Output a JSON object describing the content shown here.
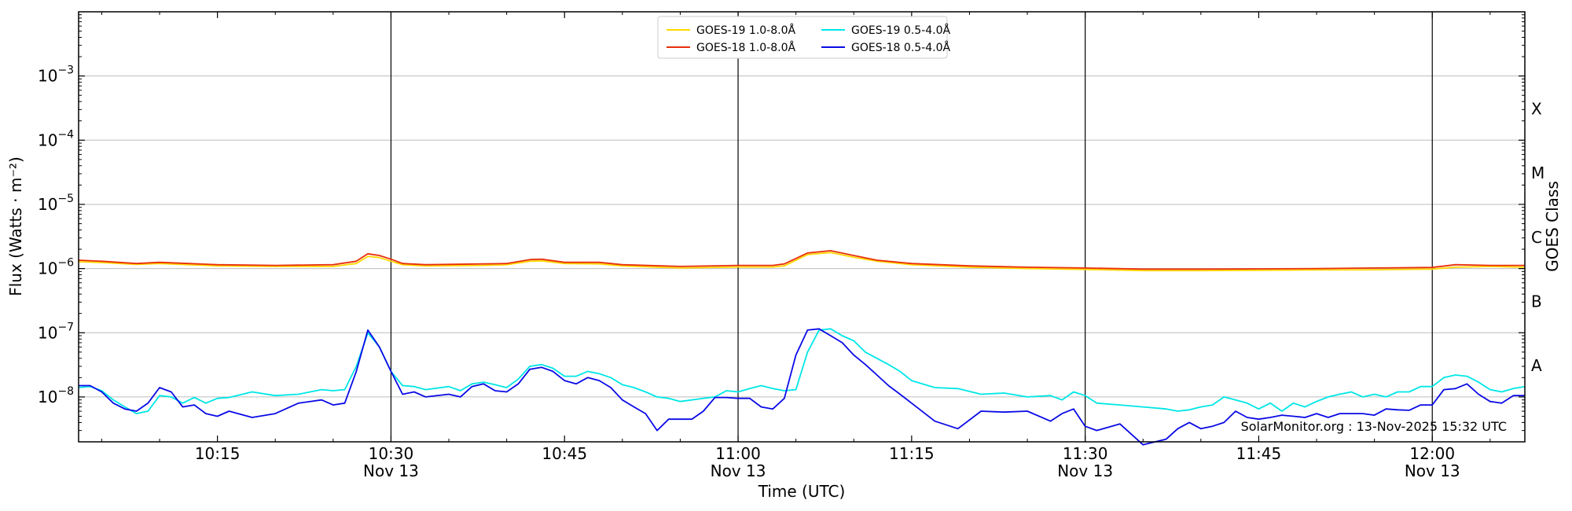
{
  "chart_data": {
    "type": "line",
    "ylabel": "Flux (Watts · m⁻²)",
    "xlabel": "Time (UTC)",
    "right_label": "GOES Class",
    "credit": "SolarMonitor.org : 13-Nov-2025 15:32 UTC",
    "yscale": "log",
    "ylim": [
      "2e-9",
      "0.01"
    ],
    "xlim": [
      "10:03",
      "12:08"
    ],
    "y_ticks": [
      {
        "base": "10",
        "exp": "−8",
        "value": "1e-8"
      },
      {
        "base": "10",
        "exp": "−7",
        "value": "1e-7"
      },
      {
        "base": "10",
        "exp": "−6",
        "value": "1e-6"
      },
      {
        "base": "10",
        "exp": "−5",
        "value": "1e-5"
      },
      {
        "base": "10",
        "exp": "−4",
        "value": "1e-4"
      },
      {
        "base": "10",
        "exp": "−3",
        "value": "1e-3"
      }
    ],
    "x_ticks": [
      {
        "time": "10:15",
        "date": ""
      },
      {
        "time": "10:30",
        "date": "Nov 13"
      },
      {
        "time": "10:45",
        "date": ""
      },
      {
        "time": "11:00",
        "date": "Nov 13"
      },
      {
        "time": "11:15",
        "date": ""
      },
      {
        "time": "11:30",
        "date": "Nov 13"
      },
      {
        "time": "11:45",
        "date": ""
      },
      {
        "time": "12:00",
        "date": "Nov 13"
      }
    ],
    "vertical_lines": [
      "10:30",
      "11:00",
      "11:30",
      "12:00"
    ],
    "classes": [
      {
        "label": "A",
        "value": "1e-8"
      },
      {
        "label": "B",
        "value": "1e-7"
      },
      {
        "label": "C",
        "value": "1e-6"
      },
      {
        "label": "M",
        "value": "1e-5"
      },
      {
        "label": "X",
        "value": "1e-4"
      }
    ],
    "grid": "horizontal at decades",
    "legend_position": "top-center",
    "series": [
      {
        "name": "GOES-19 1.0-8.0Å",
        "color": "#ffd700",
        "x": [
          "10:03",
          "10:05",
          "10:08",
          "10:10",
          "10:15",
          "10:20",
          "10:25",
          "10:27",
          "10:28",
          "10:29",
          "10:30",
          "10:31",
          "10:33",
          "10:38",
          "10:40",
          "10:42",
          "10:43",
          "10:45",
          "10:48",
          "10:50",
          "10:55",
          "11:00",
          "11:03",
          "11:04",
          "11:06",
          "11:08",
          "11:10",
          "11:12",
          "11:15",
          "11:20",
          "11:25",
          "11:30",
          "11:35",
          "11:40",
          "11:45",
          "11:50",
          "11:55",
          "12:00",
          "12:02",
          "12:05",
          "12:08"
        ],
        "values": [
          "1.28e-6",
          "1.24e-6",
          "1.16e-6",
          "1.2e-6",
          "1.1e-6",
          "1.08e-6",
          "1.08e-6",
          "1.2e-6",
          "1.55e-6",
          "1.48e-6",
          "1.3e-6",
          "1.15e-6",
          "1.1e-6",
          "1.12e-6",
          "1.15e-6",
          "1.3e-6",
          "1.32e-6",
          "1.2e-6",
          "1.18e-6",
          "1.1e-6",
          "1.02e-6",
          "1.06e-6",
          "1.06e-6",
          "1.1e-6",
          "1.65e-6",
          "1.78e-6",
          "1.5e-6",
          "1.3e-6",
          "1.15e-6",
          "1.05e-6",
          "1e-6",
          "9.7e-7",
          "9.3e-7",
          "9.3e-7",
          "9.4e-7",
          "9.5e-7",
          "9.6e-7",
          "9.8e-7",
          "1.05e-6",
          "1.08e-6",
          "1.05e-6"
        ]
      },
      {
        "name": "GOES-18 1.0-8.0Å",
        "color": "#e8300a",
        "x": [
          "10:03",
          "10:05",
          "10:08",
          "10:10",
          "10:15",
          "10:20",
          "10:25",
          "10:27",
          "10:28",
          "10:29",
          "10:30",
          "10:31",
          "10:33",
          "10:38",
          "10:40",
          "10:42",
          "10:43",
          "10:45",
          "10:48",
          "10:50",
          "10:55",
          "11:00",
          "11:03",
          "11:04",
          "11:06",
          "11:08",
          "11:10",
          "11:12",
          "11:15",
          "11:20",
          "11:25",
          "11:30",
          "11:35",
          "11:40",
          "11:45",
          "11:50",
          "11:55",
          "12:00",
          "12:02",
          "12:05",
          "12:08"
        ],
        "values": [
          "1.35e-6",
          "1.3e-6",
          "1.2e-6",
          "1.25e-6",
          "1.15e-6",
          "1.12e-6",
          "1.15e-6",
          "1.3e-6",
          "1.7e-6",
          "1.6e-6",
          "1.4e-6",
          "1.2e-6",
          "1.15e-6",
          "1.18e-6",
          "1.2e-6",
          "1.38e-6",
          "1.4e-6",
          "1.25e-6",
          "1.25e-6",
          "1.15e-6",
          "1.08e-6",
          "1.12e-6",
          "1.12e-6",
          "1.18e-6",
          "1.75e-6",
          "1.9e-6",
          "1.6e-6",
          "1.35e-6",
          "1.2e-6",
          "1.1e-6",
          "1.05e-6",
          "1.02e-6",
          "9.8e-7",
          "9.8e-7",
          "9.9e-7",
          "1e-6",
          "1.02e-6",
          "1.04e-6",
          "1.15e-6",
          "1.12e-6",
          "1.12e-6"
        ]
      },
      {
        "name": "GOES-19 0.5-4.0Å",
        "color": "#00e6e6",
        "x": [
          "10:03",
          "10:04",
          "10:05",
          "10:06",
          "10:07",
          "10:08",
          "10:09",
          "10:10",
          "10:11",
          "10:12",
          "10:13",
          "10:14",
          "10:15",
          "10:16",
          "10:18",
          "10:20",
          "10:22",
          "10:24",
          "10:25",
          "10:26",
          "10:27",
          "10:28",
          "10:29",
          "10:30",
          "10:31",
          "10:32",
          "10:33",
          "10:35",
          "10:36",
          "10:37",
          "10:38",
          "10:39",
          "10:40",
          "10:41",
          "10:42",
          "10:43",
          "10:44",
          "10:45",
          "10:46",
          "10:47",
          "10:48",
          "10:49",
          "10:50",
          "10:51",
          "10:52",
          "10:53",
          "10:54",
          "10:55",
          "10:56",
          "10:57",
          "10:58",
          "10:59",
          "11:00",
          "11:01",
          "11:02",
          "11:03",
          "11:04",
          "11:05",
          "11:06",
          "11:07",
          "11:08",
          "11:09",
          "11:10",
          "11:11",
          "11:12",
          "11:13",
          "11:14",
          "11:15",
          "11:17",
          "11:19",
          "11:21",
          "11:23",
          "11:25",
          "11:27",
          "11:28",
          "11:29",
          "11:30",
          "11:31",
          "11:33",
          "11:35",
          "11:37",
          "11:38",
          "11:39",
          "11:40",
          "11:41",
          "11:42",
          "11:43",
          "11:44",
          "11:45",
          "11:46",
          "11:47",
          "11:48",
          "11:49",
          "11:50",
          "11:51",
          "11:52",
          "11:53",
          "11:54",
          "11:55",
          "11:56",
          "11:57",
          "11:58",
          "11:59",
          "12:00",
          "12:01",
          "12:02",
          "12:03",
          "12:04",
          "12:05",
          "12:06",
          "12:07",
          "12:08"
        ],
        "values": [
          "1.4e-8",
          "1.45e-8",
          "1.25e-8",
          "9e-9",
          "7e-9",
          "5.5e-9",
          "6e-9",
          "1.05e-8",
          "1e-8",
          "8e-9",
          "9.8e-9",
          "8e-9",
          "9.5e-9",
          "9.8e-9",
          "1.2e-8",
          "1.05e-8",
          "1.1e-8",
          "1.3e-8",
          "1.25e-8",
          "1.3e-8",
          "3e-8",
          "1e-7",
          "6e-8",
          "2.5e-8",
          "1.5e-8",
          "1.45e-8",
          "1.3e-8",
          "1.45e-8",
          "1.25e-8",
          "1.6e-8",
          "1.7e-8",
          "1.55e-8",
          "1.4e-8",
          "1.9e-8",
          "3e-8",
          "3.2e-8",
          "2.8e-8",
          "2.1e-8",
          "2.1e-8",
          "2.5e-8",
          "2.3e-8",
          "2e-8",
          "1.55e-8",
          "1.4e-8",
          "1.2e-8",
          "1e-8",
          "9.5e-9",
          "8.5e-9",
          "9e-9",
          "9.5e-9",
          "1e-8",
          "1.25e-8",
          "1.2e-8",
          "1.35e-8",
          "1.5e-8",
          "1.35e-8",
          "1.25e-8",
          "1.3e-8",
          "5e-8",
          "1.1e-7",
          "1.15e-7",
          "9e-8",
          "7.5e-8",
          "5e-8",
          "4e-8",
          "3.2e-8",
          "2.5e-8",
          "1.8e-8",
          "1.4e-8",
          "1.35e-8",
          "1.1e-8",
          "1.15e-8",
          "1e-8",
          "1.05e-8",
          "9e-9",
          "1.2e-8",
          "1.05e-8",
          "8e-9",
          "7.5e-9",
          "7e-9",
          "6.5e-9",
          "6e-9",
          "6.3e-9",
          "7e-9",
          "7.5e-9",
          "1e-8",
          "9e-9",
          "8e-9",
          "6.5e-9",
          "8e-9",
          "6e-9",
          "8e-9",
          "7e-9",
          "8.5e-9",
          "1e-8",
          "1.1e-8",
          "1.2e-8",
          "1e-8",
          "1.1e-8",
          "1e-8",
          "1.2e-8",
          "1.2e-8",
          "1.45e-8",
          "1.45e-8",
          "2e-8",
          "2.2e-8",
          "2.1e-8",
          "1.7e-8",
          "1.3e-8",
          "1.2e-8",
          "1.35e-8",
          "1.45e-8"
        ]
      },
      {
        "name": "GOES-18 0.5-4.0Å",
        "color": "#0a0ae6",
        "x": [
          "10:03",
          "10:04",
          "10:05",
          "10:06",
          "10:07",
          "10:08",
          "10:09",
          "10:10",
          "10:11",
          "10:12",
          "10:13",
          "10:14",
          "10:15",
          "10:16",
          "10:18",
          "10:20",
          "10:22",
          "10:24",
          "10:25",
          "10:26",
          "10:27",
          "10:28",
          "10:29",
          "10:30",
          "10:31",
          "10:32",
          "10:33",
          "10:35",
          "10:36",
          "10:37",
          "10:38",
          "10:39",
          "10:40",
          "10:41",
          "10:42",
          "10:43",
          "10:44",
          "10:45",
          "10:46",
          "10:47",
          "10:48",
          "10:49",
          "10:50",
          "10:51",
          "10:52",
          "10:53",
          "10:54",
          "10:55",
          "10:56",
          "10:57",
          "10:58",
          "10:59",
          "11:00",
          "11:01",
          "11:02",
          "11:03",
          "11:04",
          "11:05",
          "11:06",
          "11:07",
          "11:08",
          "11:09",
          "11:10",
          "11:11",
          "11:12",
          "11:13",
          "11:14",
          "11:15",
          "11:17",
          "11:19",
          "11:21",
          "11:23",
          "11:25",
          "11:27",
          "11:28",
          "11:29",
          "11:30",
          "11:31",
          "11:33",
          "11:35",
          "11:37",
          "11:38",
          "11:39",
          "11:40",
          "11:41",
          "11:42",
          "11:43",
          "11:44",
          "11:45",
          "11:46",
          "11:47",
          "11:48",
          "11:49",
          "11:50",
          "11:51",
          "11:52",
          "11:53",
          "11:54",
          "11:55",
          "11:56",
          "11:57",
          "11:58",
          "11:59",
          "12:00",
          "12:01",
          "12:02",
          "12:03",
          "12:04",
          "12:05",
          "12:06",
          "12:07",
          "12:08"
        ],
        "values": [
          "1.5e-8",
          "1.5e-8",
          "1.2e-8",
          "8e-9",
          "6.5e-9",
          "6e-9",
          "8e-9",
          "1.4e-8",
          "1.2e-8",
          "7e-9",
          "7.5e-9",
          "5.5e-9",
          "5e-9",
          "6e-9",
          "4.8e-9",
          "5.5e-9",
          "8e-9",
          "9e-9",
          "7.5e-9",
          "8e-9",
          "2.5e-8",
          "1.1e-7",
          "6e-8",
          "2.5e-8",
          "1.1e-8",
          "1.2e-8",
          "1e-8",
          "1.1e-8",
          "1e-8",
          "1.45e-8",
          "1.6e-8",
          "1.25e-8",
          "1.2e-8",
          "1.6e-8",
          "2.7e-8",
          "2.9e-8",
          "2.5e-8",
          "1.8e-8",
          "1.6e-8",
          "2e-8",
          "1.8e-8",
          "1.4e-8",
          "9e-9",
          "7e-9",
          "5.5e-9",
          "3e-9",
          "4.5e-9",
          "4.5e-9",
          "4.5e-9",
          "6e-9",
          "9.8e-9",
          "9.8e-9",
          "9.5e-9",
          "9.5e-9",
          "7e-9",
          "6.5e-9",
          "9.5e-9",
          "4.5e-8",
          "1.1e-7",
          "1.15e-7",
          "9e-8",
          "7e-8",
          "4.5e-8",
          "3.2e-8",
          "2.2e-8",
          "1.5e-8",
          "1.1e-8",
          "8e-9",
          "4.2e-9",
          "3.2e-9",
          "6e-9",
          "5.8e-9",
          "6e-9",
          "4.2e-9",
          "5.5e-9",
          "6.5e-9",
          "3.5e-9",
          "3e-9",
          "3.8e-9",
          "1.8e-9",
          "2.2e-9",
          "3.2e-9",
          "4e-9",
          "3.2e-9",
          "3.5e-9",
          "4e-9",
          "6e-9",
          "4.8e-9",
          "4.5e-9",
          "4.8e-9",
          "5.2e-9",
          "5e-9",
          "4.8e-9",
          "5.5e-9",
          "4.8e-9",
          "5.5e-9",
          "5.5e-9",
          "5.5e-9",
          "5.2e-9",
          "6.5e-9",
          "6.3e-9",
          "6.2e-9",
          "7.5e-9",
          "7.5e-9",
          "1.3e-8",
          "1.35e-8",
          "1.6e-8",
          "1.1e-8",
          "8.5e-9",
          "8e-9",
          "1.05e-8",
          "1.05e-8"
        ]
      }
    ]
  }
}
